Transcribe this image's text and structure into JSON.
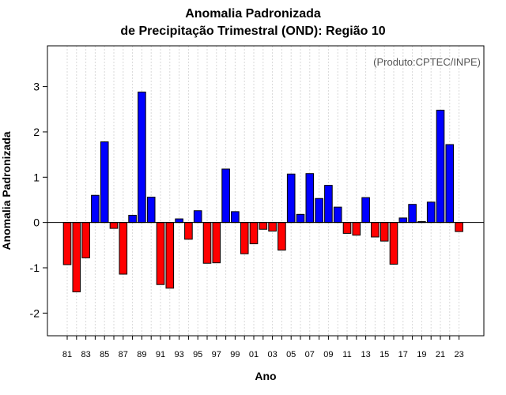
{
  "chart_data": {
    "type": "bar",
    "title": "Anomalia Padronizada",
    "subtitle": "de Precipitação Trimestral (OND): Região 10",
    "xlabel": "Ano",
    "ylabel": "Anomalia Padronizada",
    "source_note": "(Produto:CPTEC/INPE)",
    "ylim": [
      -2.5,
      3.9
    ],
    "yticks": [
      -2,
      -1,
      0,
      1,
      2,
      3
    ],
    "ytick_labels": [
      "-2",
      "-1",
      "0",
      "1",
      "2",
      "3"
    ],
    "grid": true,
    "positive_color": "#0000ff",
    "negative_color": "#ff0000",
    "categories": [
      "1981",
      "1982",
      "1983",
      "1984",
      "1985",
      "1986",
      "1987",
      "1988",
      "1989",
      "1990",
      "1991",
      "1992",
      "1993",
      "1994",
      "1995",
      "1996",
      "1997",
      "1998",
      "1999",
      "2000",
      "2001",
      "2002",
      "2003",
      "2004",
      "2005",
      "2006",
      "2007",
      "2008",
      "2009",
      "2010",
      "2011",
      "2012",
      "2013",
      "2014",
      "2015",
      "2016",
      "2017",
      "2018",
      "2019",
      "2020",
      "2021",
      "2022",
      "2023"
    ],
    "xtick_labels": [
      "81",
      "83",
      "85",
      "87",
      "89",
      "91",
      "93",
      "95",
      "97",
      "99",
      "01",
      "03",
      "05",
      "07",
      "09",
      "11",
      "13",
      "15",
      "17",
      "19",
      "21",
      "23"
    ],
    "values": [
      -0.93,
      -1.53,
      -0.78,
      0.6,
      1.78,
      -0.13,
      -1.14,
      0.16,
      2.88,
      0.56,
      -1.37,
      -1.45,
      0.08,
      -0.37,
      0.26,
      -0.9,
      -0.89,
      1.18,
      0.24,
      -0.69,
      -0.47,
      -0.15,
      -0.19,
      -0.61,
      1.07,
      0.18,
      1.08,
      0.53,
      0.82,
      0.34,
      -0.24,
      -0.28,
      0.55,
      -0.32,
      -0.41,
      -0.92,
      0.1,
      0.4,
      0.02,
      0.45,
      2.48,
      1.72,
      -0.2
    ]
  }
}
